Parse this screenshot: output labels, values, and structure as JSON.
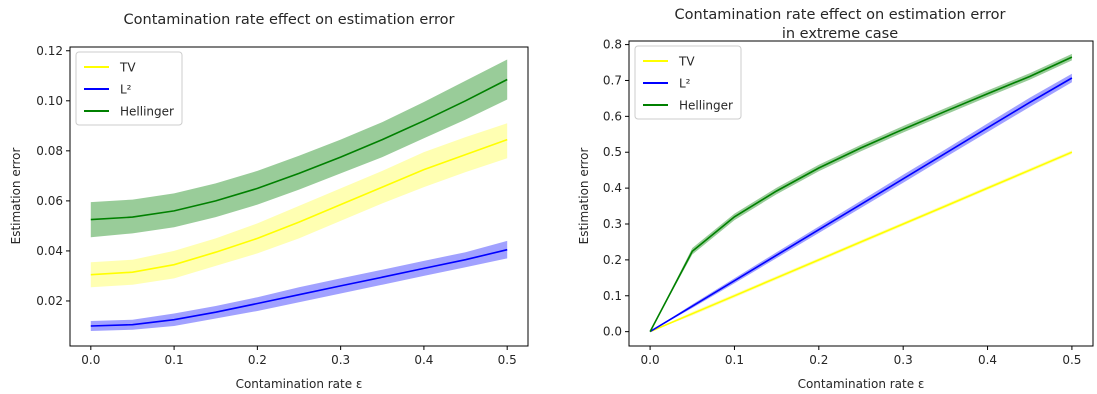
{
  "chart_data": [
    {
      "type": "line",
      "title": [
        "Contamination rate effect on estimation error"
      ],
      "xlabel": "Contamination rate ε",
      "ylabel": "Estimation error",
      "xlim": [
        -0.025,
        0.525
      ],
      "ylim": [
        0.002,
        0.1215
      ],
      "xticks": [
        0.0,
        0.1,
        0.2,
        0.3,
        0.4,
        0.5
      ],
      "xtick_labels": [
        "0.0",
        "0.1",
        "0.2",
        "0.3",
        "0.4",
        "0.5"
      ],
      "yticks": [
        0.02,
        0.04,
        0.06,
        0.08,
        0.1,
        0.12
      ],
      "ytick_labels": [
        "0.02",
        "0.04",
        "0.06",
        "0.08",
        "0.10",
        "0.12"
      ],
      "legend_position": "upper-left",
      "grid": false,
      "x": [
        0.0,
        0.05,
        0.1,
        0.15,
        0.2,
        0.25,
        0.3,
        0.35,
        0.4,
        0.45,
        0.5
      ],
      "series": [
        {
          "name": "TV",
          "color": "#ffff00",
          "band_color": "#ffff66",
          "values": [
            0.0305,
            0.0315,
            0.0345,
            0.0395,
            0.045,
            0.0515,
            0.0585,
            0.0655,
            0.0725,
            0.0785,
            0.0845
          ],
          "lower": [
            0.0255,
            0.0265,
            0.029,
            0.034,
            0.039,
            0.045,
            0.052,
            0.059,
            0.0655,
            0.0715,
            0.077
          ],
          "upper": [
            0.0355,
            0.0365,
            0.04,
            0.045,
            0.051,
            0.058,
            0.065,
            0.072,
            0.0795,
            0.0855,
            0.091
          ]
        },
        {
          "name": "L²",
          "color": "#0000ff",
          "band_color": "#4444ff",
          "values": [
            0.01,
            0.0105,
            0.0125,
            0.0155,
            0.019,
            0.0225,
            0.026,
            0.0295,
            0.033,
            0.0365,
            0.0405
          ],
          "lower": [
            0.008,
            0.0085,
            0.01,
            0.013,
            0.016,
            0.0195,
            0.023,
            0.0265,
            0.03,
            0.0335,
            0.037
          ],
          "upper": [
            0.012,
            0.0125,
            0.015,
            0.018,
            0.0215,
            0.0255,
            0.029,
            0.0325,
            0.036,
            0.0395,
            0.044
          ]
        },
        {
          "name": "Hellinger",
          "color": "#008000",
          "band_color": "#339933",
          "values": [
            0.0525,
            0.0535,
            0.056,
            0.06,
            0.065,
            0.071,
            0.0775,
            0.0845,
            0.092,
            0.1,
            0.1085
          ],
          "lower": [
            0.0455,
            0.047,
            0.0495,
            0.0535,
            0.0585,
            0.0645,
            0.071,
            0.0775,
            0.085,
            0.0925,
            0.1005
          ],
          "upper": [
            0.0595,
            0.0605,
            0.063,
            0.067,
            0.072,
            0.078,
            0.0845,
            0.0915,
            0.0995,
            0.108,
            0.1165
          ]
        }
      ]
    },
    {
      "type": "line",
      "title": [
        "Contamination rate effect on estimation error",
        "in extreme case"
      ],
      "xlabel": "Contamination rate ε",
      "ylabel": "Estimation error",
      "xlim": [
        -0.025,
        0.525
      ],
      "ylim": [
        -0.04,
        0.81
      ],
      "xticks": [
        0.0,
        0.1,
        0.2,
        0.3,
        0.4,
        0.5
      ],
      "xtick_labels": [
        "0.0",
        "0.1",
        "0.2",
        "0.3",
        "0.4",
        "0.5"
      ],
      "yticks": [
        0.0,
        0.1,
        0.2,
        0.3,
        0.4,
        0.5,
        0.6,
        0.7,
        0.8
      ],
      "ytick_labels": [
        "0.0",
        "0.1",
        "0.2",
        "0.3",
        "0.4",
        "0.5",
        "0.6",
        "0.7",
        "0.8"
      ],
      "legend_position": "upper-left",
      "grid": false,
      "x": [
        0.0,
        0.05,
        0.1,
        0.15,
        0.2,
        0.25,
        0.3,
        0.35,
        0.4,
        0.45,
        0.5
      ],
      "series": [
        {
          "name": "TV",
          "color": "#ffff00",
          "band_color": "#ffff66",
          "values": [
            0.0,
            0.05,
            0.1,
            0.15,
            0.2,
            0.25,
            0.3,
            0.35,
            0.4,
            0.45,
            0.5
          ],
          "lower": [
            0.0,
            0.045,
            0.095,
            0.145,
            0.195,
            0.245,
            0.295,
            0.345,
            0.395,
            0.445,
            0.495
          ],
          "upper": [
            0.0,
            0.055,
            0.105,
            0.155,
            0.205,
            0.255,
            0.305,
            0.355,
            0.405,
            0.455,
            0.505
          ]
        },
        {
          "name": "L²",
          "color": "#0000ff",
          "band_color": "#4444ff",
          "values": [
            0.0,
            0.071,
            0.142,
            0.213,
            0.284,
            0.355,
            0.426,
            0.497,
            0.568,
            0.639,
            0.707
          ],
          "lower": [
            0.0,
            0.066,
            0.135,
            0.205,
            0.275,
            0.345,
            0.415,
            0.486,
            0.556,
            0.626,
            0.695
          ],
          "upper": [
            0.0,
            0.076,
            0.149,
            0.221,
            0.293,
            0.365,
            0.437,
            0.508,
            0.58,
            0.652,
            0.719
          ]
        },
        {
          "name": "Hellinger",
          "color": "#008000",
          "band_color": "#339933",
          "values": [
            0.0,
            0.224,
            0.32,
            0.392,
            0.456,
            0.512,
            0.564,
            0.614,
            0.663,
            0.711,
            0.765
          ],
          "lower": [
            0.0,
            0.215,
            0.311,
            0.383,
            0.447,
            0.503,
            0.555,
            0.605,
            0.654,
            0.702,
            0.756
          ],
          "upper": [
            0.0,
            0.233,
            0.329,
            0.401,
            0.465,
            0.521,
            0.573,
            0.623,
            0.672,
            0.72,
            0.774
          ]
        }
      ]
    }
  ]
}
